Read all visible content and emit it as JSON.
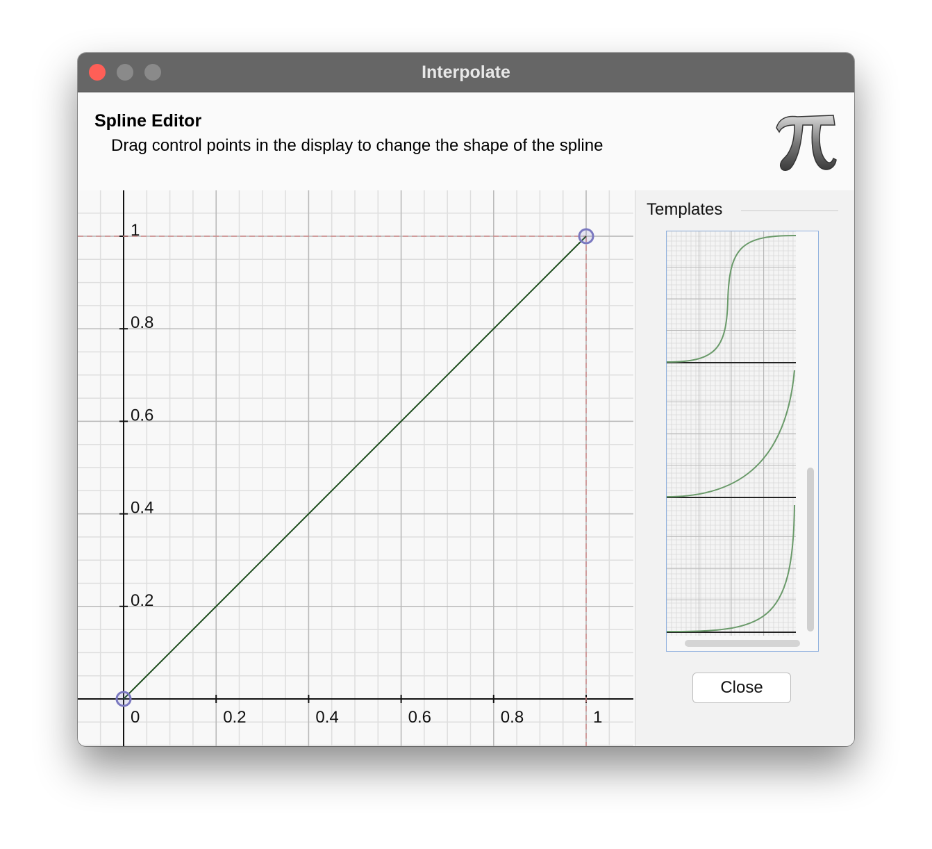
{
  "window": {
    "title": "Interpolate"
  },
  "header": {
    "title": "Spline Editor",
    "description": "Drag control points in the display to change the shape of the spline"
  },
  "editor": {
    "x_ticks": [
      "0",
      "0.2",
      "0.4",
      "0.6",
      "0.8",
      "1"
    ],
    "y_ticks": [
      "0.2",
      "0.4",
      "0.6",
      "0.8",
      "1"
    ],
    "control_points": [
      {
        "x": 0,
        "y": 0
      },
      {
        "x": 1,
        "y": 1
      }
    ],
    "line_color": "#1d4d1d",
    "point_color": "#7a78c0",
    "guide_color": "#d08a8a"
  },
  "templates": {
    "label": "Templates",
    "items": [
      "s-curve-template",
      "ease-in-template",
      "steep-ease-in-template"
    ]
  },
  "buttons": {
    "close": "Close"
  }
}
